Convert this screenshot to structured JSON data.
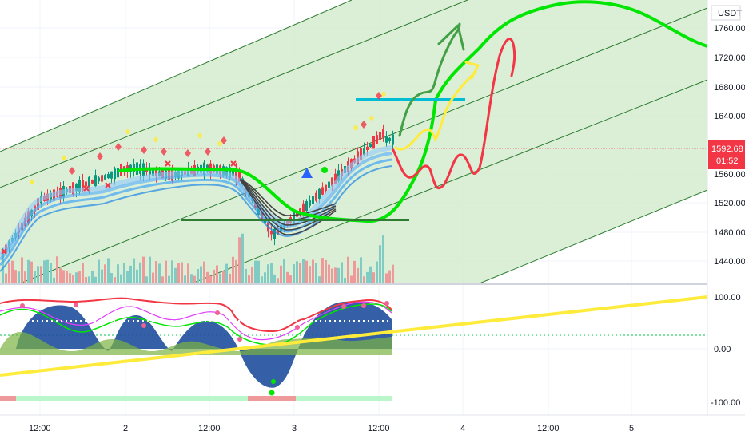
{
  "header": {
    "currency": "USDT"
  },
  "price_axis": {
    "labels": [
      "1760.00",
      "1720.00",
      "1680.00",
      "1640.00",
      "1560.00",
      "1520.00",
      "1480.00",
      "1440.00"
    ]
  },
  "current_price": {
    "value": "1592.68",
    "countdown": "01:52",
    "color": "#f23645"
  },
  "oscillator_axis": {
    "labels": [
      "100.00",
      "0.00",
      "-100.00"
    ]
  },
  "time_axis": {
    "labels": [
      "12:00",
      "2",
      "12:00",
      "3",
      "12:00",
      "4",
      "12:00",
      "5"
    ]
  },
  "colors": {
    "channel_fill": "#d7ecd2",
    "channel_line": "#2e7d32",
    "ema_bright": "#00e600",
    "down": "#f23645",
    "up": "#089981",
    "forecast_red": "#f23645",
    "forecast_yellow": "#ffeb3b",
    "forecast_green": "#43a047",
    "resistance": "#00bcd4",
    "trend_yellow": "#ffeb3b"
  },
  "icons": [
    "triangle-up-icon",
    "diamond-icon",
    "cross-icon"
  ]
}
